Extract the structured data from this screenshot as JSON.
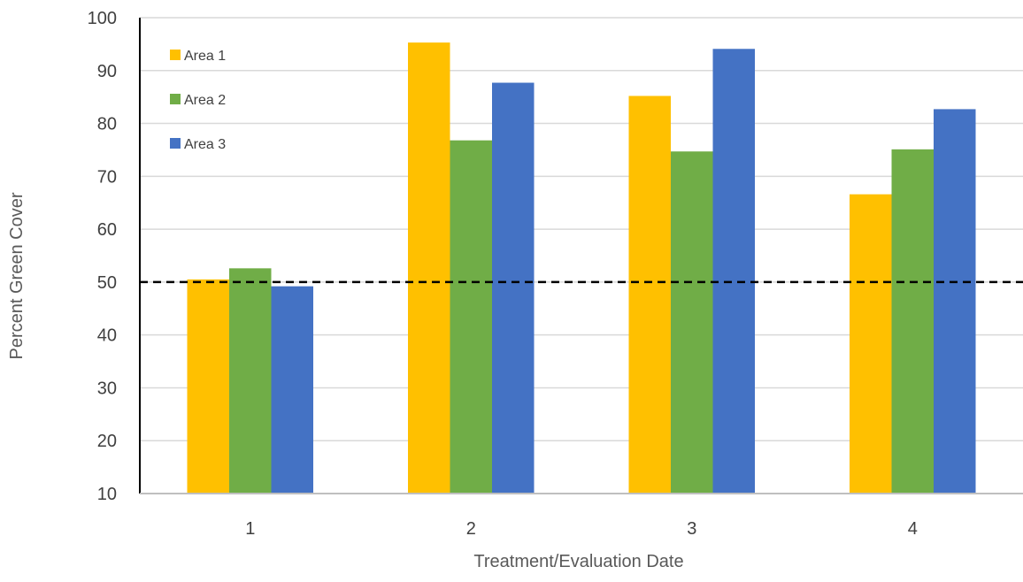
{
  "chart_data": {
    "type": "bar",
    "categories": [
      "1",
      "2",
      "3",
      "4"
    ],
    "series": [
      {
        "name": "Area 1",
        "color": "#FFC000",
        "values": [
          50.5,
          95.3,
          85.2,
          66.6
        ]
      },
      {
        "name": "Area 2",
        "color": "#70AD47",
        "values": [
          52.6,
          76.8,
          74.7,
          75.1
        ]
      },
      {
        "name": "Area 3",
        "color": "#4472C4",
        "values": [
          49.2,
          87.7,
          94.1,
          82.7
        ]
      }
    ],
    "xlabel": "Treatment/Evaluation Date",
    "ylabel": "Percent Green Cover",
    "ylim": [
      10,
      100
    ],
    "yticks": [
      10,
      20,
      30,
      40,
      50,
      60,
      70,
      80,
      90,
      100
    ],
    "reference_line": {
      "value": 50,
      "style": "dashed",
      "color": "#000000"
    },
    "grid": true,
    "legend_position": "top-left"
  }
}
